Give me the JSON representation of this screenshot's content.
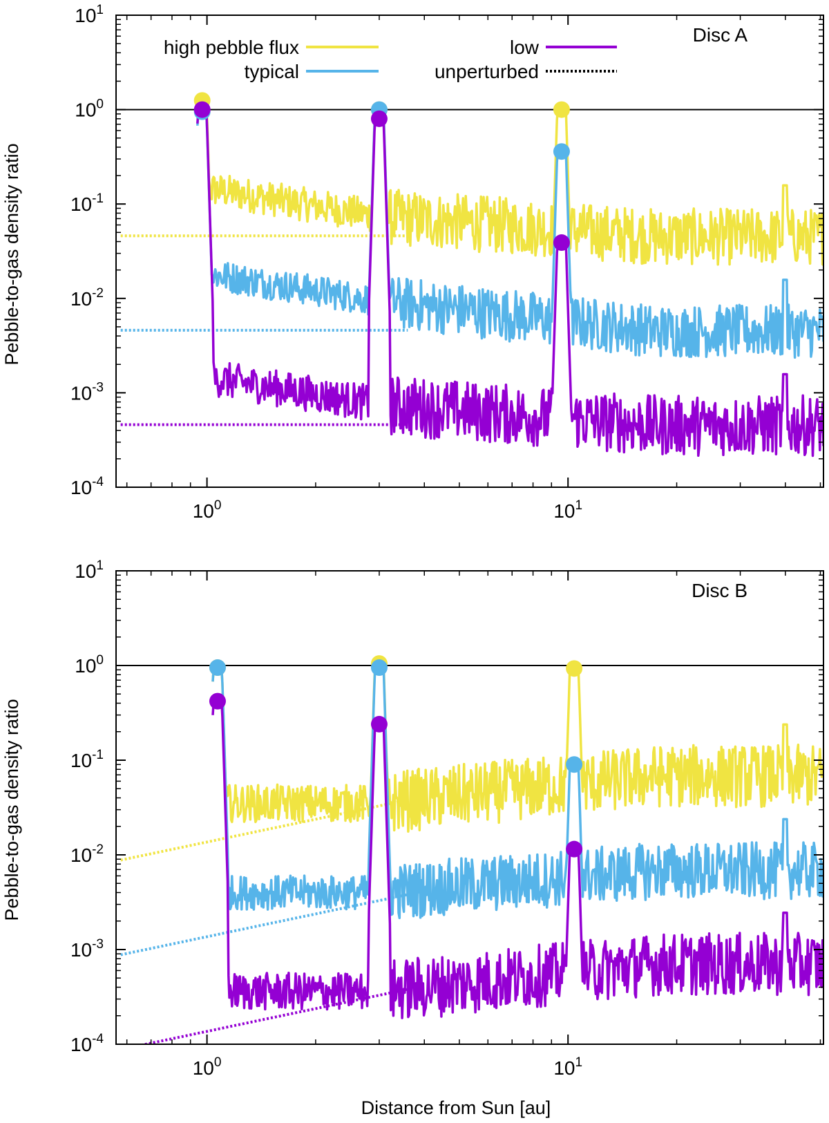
{
  "figure": {
    "xlabel": "Distance from Sun [au]",
    "ylabel": "Pebble-to-gas density ratio"
  },
  "legend": [
    {
      "label": "high pebble flux",
      "color": "#f0e442",
      "style": "solid"
    },
    {
      "label": "typical",
      "color": "#56b4e9",
      "style": "solid"
    },
    {
      "label": "low",
      "color": "#9400d3",
      "style": "solid"
    },
    {
      "label": "unperturbed",
      "color": "#000000",
      "style": "dotted"
    }
  ],
  "colors": {
    "high": "#f0e442",
    "typical": "#56b4e9",
    "low": "#9400d3",
    "reference": "#000000"
  },
  "chart_data": [
    {
      "type": "line",
      "title": "Disc A",
      "xscale": "log",
      "yscale": "log",
      "xlim": [
        0.56,
        51
      ],
      "ylim": [
        0.0001,
        10
      ],
      "xticks": [
        {
          "base": "10",
          "exp": "0",
          "value": 1
        },
        {
          "base": "10",
          "exp": "1",
          "value": 10
        }
      ],
      "yticks": [
        {
          "base": "10",
          "exp": "-4",
          "value": 0.0001
        },
        {
          "base": "10",
          "exp": "-3",
          "value": 0.001
        },
        {
          "base": "10",
          "exp": "-2",
          "value": 0.01
        },
        {
          "base": "10",
          "exp": "-1",
          "value": 0.1
        },
        {
          "base": "10",
          "exp": "0",
          "value": 1
        },
        {
          "base": "10",
          "exp": "1",
          "value": 10
        }
      ],
      "reference_line": 1,
      "planet_positions": [
        0.97,
        3.0,
        9.6
      ],
      "spike_after": [
        1.07,
        3.05,
        9.75
      ],
      "outer_spike": 40,
      "series": [
        {
          "name": "high pebble flux",
          "key": "high",
          "unperturbed_level": 0.046,
          "unperturbed_slope": 0.0,
          "inner_level": 0.14,
          "inner_slope": -0.62,
          "outer_level": 0.045,
          "noise": 0.3,
          "planet_peaks": [
            1.25,
            1.0,
            1.0
          ]
        },
        {
          "name": "typical",
          "key": "typical",
          "unperturbed_level": 0.0046,
          "unperturbed_slope": 0.0,
          "inner_level": 0.0175,
          "inner_slope": -0.6,
          "outer_level": 0.0045,
          "noise": 0.28,
          "planet_peaks": [
            0.95,
            1.0,
            0.36
          ]
        },
        {
          "name": "low",
          "key": "low",
          "unperturbed_level": 0.00046,
          "unperturbed_slope": 0.0,
          "inner_level": 0.0014,
          "inner_slope": -0.6,
          "outer_level": 0.00045,
          "noise": 0.32,
          "planet_peaks": [
            1.0,
            0.8,
            0.039
          ]
        }
      ]
    },
    {
      "type": "line",
      "title": "Disc B",
      "xscale": "log",
      "yscale": "log",
      "xlim": [
        0.56,
        51
      ],
      "ylim": [
        0.0001,
        10
      ],
      "xticks": [
        {
          "base": "10",
          "exp": "0",
          "value": 1
        },
        {
          "base": "10",
          "exp": "1",
          "value": 10
        }
      ],
      "yticks": [
        {
          "base": "10",
          "exp": "-4",
          "value": 0.0001
        },
        {
          "base": "10",
          "exp": "-3",
          "value": 0.001
        },
        {
          "base": "10",
          "exp": "-2",
          "value": 0.01
        },
        {
          "base": "10",
          "exp": "-1",
          "value": 0.1
        },
        {
          "base": "10",
          "exp": "0",
          "value": 1
        },
        {
          "base": "10",
          "exp": "1",
          "value": 10
        }
      ],
      "reference_line": 1,
      "planet_positions": [
        1.07,
        3.0,
        10.4
      ],
      "spike_after": [
        1.17,
        3.1,
        10.6
      ],
      "outer_spike": 40,
      "series": [
        {
          "name": "high pebble flux",
          "key": "high",
          "unperturbed_level": 0.0088,
          "unperturbed_slope": 0.8,
          "inner_level": 0.035,
          "inner_slope": 0.0,
          "outer_level": 0.068,
          "noise": 0.33,
          "planet_peaks": [
            0.95,
            1.05,
            0.93
          ]
        },
        {
          "name": "typical",
          "key": "typical",
          "unperturbed_level": 0.00088,
          "unperturbed_slope": 0.8,
          "inner_level": 0.004,
          "inner_slope": 0.0,
          "outer_level": 0.0068,
          "noise": 0.3,
          "planet_peaks": [
            0.95,
            0.95,
            0.09
          ]
        },
        {
          "name": "low",
          "key": "low",
          "unperturbed_level": 8.8e-05,
          "unperturbed_slope": 0.8,
          "inner_level": 0.00036,
          "inner_slope": 0.0,
          "outer_level": 0.0007,
          "noise": 0.33,
          "planet_peaks": [
            0.42,
            0.24,
            0.0115
          ]
        }
      ]
    }
  ]
}
